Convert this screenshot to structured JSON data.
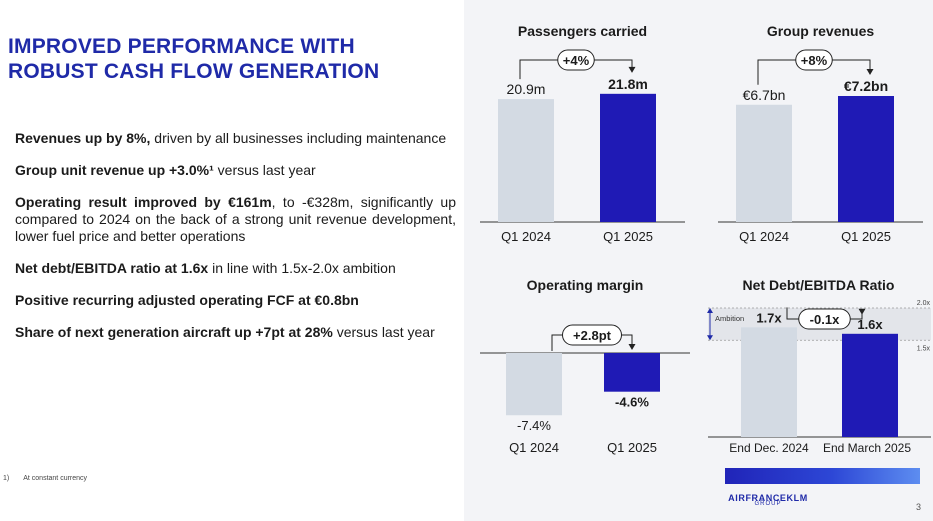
{
  "slide": {
    "title_line1": "IMPROVED PERFORMANCE WITH",
    "title_line2": "ROBUST CASH FLOW GENERATION",
    "page_number": "3",
    "footnote_marker": "1)",
    "footnote_text": "At constant currency",
    "brand_main": "AIRFRANCEKLM",
    "brand_sub": "GROUP"
  },
  "bullets": [
    {
      "bold": "Revenues up by 8%,",
      "text": " driven by all businesses including maintenance"
    },
    {
      "bold": "Group unit revenue up +3.0%¹",
      "text": " versus last year"
    },
    {
      "bold": "Operating result improved by €161m",
      "text": ", to -€328m, significantly up compared to 2024 on the back of a strong unit revenue development, lower fuel price and better operations"
    },
    {
      "bold": "Net debt/EBITDA ratio at 1.6x",
      "text": " in line with 1.5x-2.0x ambition"
    },
    {
      "bold": "Positive recurring adjusted operating FCF at €0.8bn",
      "text": ""
    },
    {
      "bold": "Share of next generation aircraft up +7pt at 28%",
      "text": " versus last year"
    }
  ],
  "colors": {
    "accent": "#1f2aa8",
    "bar_2024": "#d3dae3",
    "bar_2025": "#1f1ab5",
    "panel_bg": "#f3f4f7"
  },
  "chart_data": [
    {
      "type": "bar",
      "title": "Passengers carried",
      "categories": [
        "Q1 2024",
        "Q1 2025"
      ],
      "values": [
        20.9,
        21.8
      ],
      "value_labels": [
        "20.9m",
        "21.8m"
      ],
      "change_label": "+4%",
      "ylim": [
        0,
        25
      ]
    },
    {
      "type": "bar",
      "title": "Group revenues",
      "categories": [
        "Q1 2024",
        "Q1 2025"
      ],
      "values": [
        6.7,
        7.2
      ],
      "value_labels": [
        "€6.7bn",
        "€7.2bn"
      ],
      "change_label": "+8%",
      "ylim": [
        0,
        8.4
      ]
    },
    {
      "type": "bar",
      "title": "Operating margin",
      "categories": [
        "Q1 2024",
        "Q1 2025"
      ],
      "values": [
        -7.4,
        -4.6
      ],
      "value_labels": [
        "-7.4%",
        "-4.6%"
      ],
      "change_label": "+2.8pt",
      "ylim": [
        -8.5,
        0
      ]
    },
    {
      "type": "bar",
      "title": "Net Debt/EBITDA Ratio",
      "categories": [
        "End Dec. 2024",
        "End March 2025"
      ],
      "values": [
        1.7,
        1.6
      ],
      "value_labels": [
        "1.7x",
        "1.6x"
      ],
      "change_label": "-0.1x",
      "ambition_label": "Ambition",
      "ambition_range": [
        1.5,
        2.0
      ],
      "ambition_tick_labels": [
        "2.0x",
        "1.5x"
      ],
      "ylim": [
        0,
        2.0
      ]
    }
  ]
}
